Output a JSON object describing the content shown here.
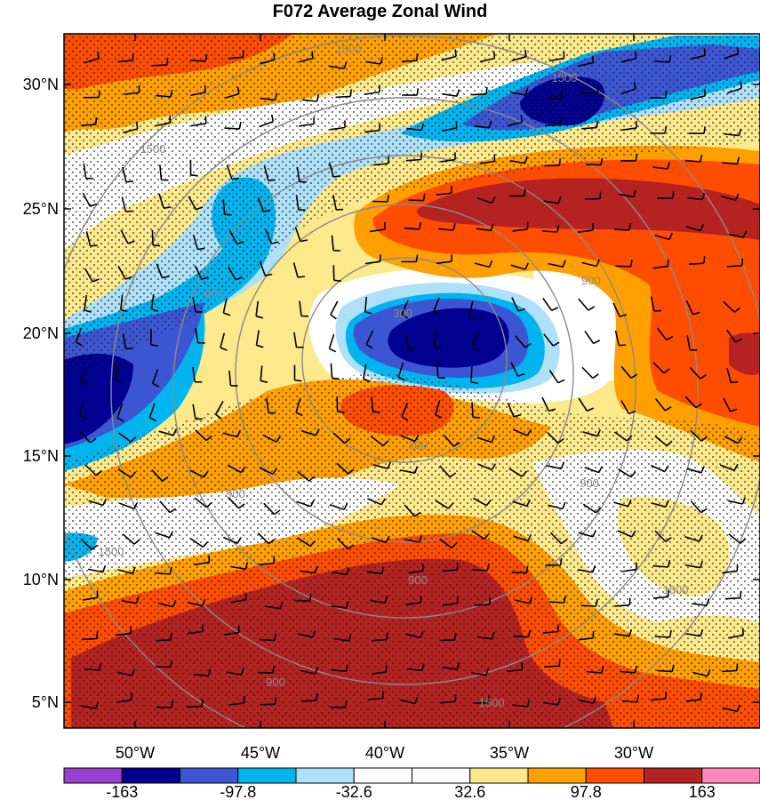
{
  "title": "F072 Average Zonal Wind",
  "lat_labels": [
    "30°N",
    "25°N",
    "20°N",
    "15°N",
    "10°N",
    "5°N"
  ],
  "lon_labels": [
    "50°W",
    "45°W",
    "40°W",
    "35°W",
    "30°W"
  ],
  "colorbar": {
    "colors": [
      "#9a3fd0",
      "#01008f",
      "#3c55d2",
      "#00b4f0",
      "#aee0f7",
      "#ffffff",
      "#ffffff",
      "#fce98c",
      "#ffa000",
      "#fe4d00",
      "#b52222",
      "#ff88bb"
    ],
    "labels": [
      "-163",
      "-97.8",
      "-32.6",
      "32.6",
      "97.8",
      "163"
    ]
  },
  "contour_labels": [
    "1500",
    "1500",
    "1500",
    "900",
    "900",
    "300",
    "300",
    "900",
    "900",
    "900",
    "1500",
    "1500",
    "900",
    "1500"
  ],
  "palette": {
    "dark_red": "#b52222",
    "red": "#fe4d00",
    "orange": "#ffa000",
    "yellow": "#fce98c",
    "white": "#ffffff",
    "light_blue": "#aee0f7",
    "blue": "#00b4f0",
    "mid_blue": "#3c55d2",
    "navy": "#01008f"
  }
}
